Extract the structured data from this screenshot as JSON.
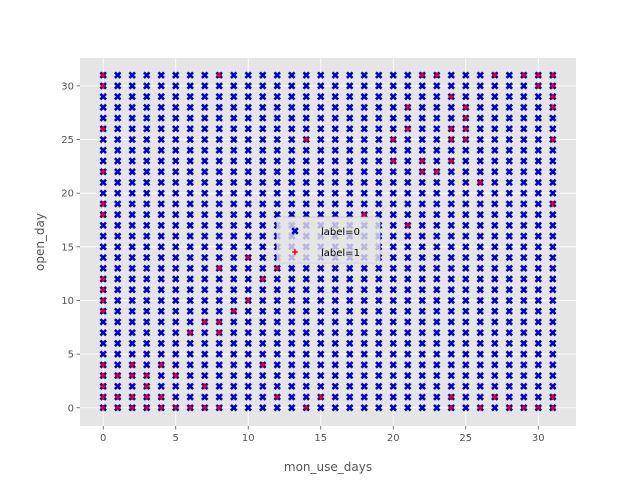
{
  "chart_data": {
    "type": "scatter",
    "xlabel": "mon_use_days",
    "ylabel": "open_day",
    "xlim": [
      -1.6,
      32.6
    ],
    "ylim": [
      -1.7,
      32.6
    ],
    "xticks": [
      0,
      5,
      10,
      15,
      20,
      25,
      30
    ],
    "yticks": [
      0,
      5,
      10,
      15,
      20,
      25,
      30
    ],
    "grid": true,
    "background": "#e5e5e5",
    "legend_position": "center",
    "x": [
      0,
      31
    ],
    "y": [
      0,
      31
    ],
    "series": [
      {
        "name": "label=0",
        "marker": "x",
        "color": "#0000cc",
        "grid_fill": {
          "x_range": [
            0,
            31
          ],
          "y_range": [
            0,
            31
          ],
          "step": 1
        }
      },
      {
        "name": "label=1",
        "marker": "+",
        "color": "#ff0000",
        "points": [
          [
            0,
            31
          ],
          [
            0,
            30
          ],
          [
            0,
            26
          ],
          [
            0,
            22
          ],
          [
            0,
            19
          ],
          [
            0,
            18
          ],
          [
            0,
            12
          ],
          [
            0,
            11
          ],
          [
            0,
            10
          ],
          [
            0,
            9
          ],
          [
            0,
            4
          ],
          [
            0,
            3
          ],
          [
            0,
            2
          ],
          [
            0,
            1
          ],
          [
            0,
            0
          ],
          [
            1,
            3
          ],
          [
            1,
            1
          ],
          [
            1,
            0
          ],
          [
            2,
            4
          ],
          [
            2,
            3
          ],
          [
            2,
            1
          ],
          [
            2,
            0
          ],
          [
            3,
            3
          ],
          [
            3,
            2
          ],
          [
            3,
            1
          ],
          [
            3,
            0
          ],
          [
            4,
            4
          ],
          [
            4,
            1
          ],
          [
            4,
            0
          ],
          [
            5,
            3
          ],
          [
            5,
            0
          ],
          [
            6,
            7
          ],
          [
            6,
            0
          ],
          [
            7,
            8
          ],
          [
            7,
            2
          ],
          [
            7,
            0
          ],
          [
            8,
            31
          ],
          [
            8,
            13
          ],
          [
            8,
            8
          ],
          [
            8,
            7
          ],
          [
            8,
            0
          ],
          [
            9,
            9
          ],
          [
            10,
            14
          ],
          [
            10,
            10
          ],
          [
            11,
            12
          ],
          [
            11,
            4
          ],
          [
            12,
            13
          ],
          [
            12,
            1
          ],
          [
            14,
            25
          ],
          [
            14,
            0
          ],
          [
            15,
            1
          ],
          [
            18,
            18
          ],
          [
            20,
            25
          ],
          [
            20,
            23
          ],
          [
            21,
            28
          ],
          [
            21,
            26
          ],
          [
            21,
            17
          ],
          [
            22,
            31
          ],
          [
            22,
            23
          ],
          [
            22,
            22
          ],
          [
            23,
            31
          ],
          [
            23,
            22
          ],
          [
            24,
            29
          ],
          [
            24,
            26
          ],
          [
            24,
            25
          ],
          [
            24,
            23
          ],
          [
            24,
            1
          ],
          [
            24,
            0
          ],
          [
            25,
            28
          ],
          [
            25,
            27
          ],
          [
            25,
            26
          ],
          [
            25,
            25
          ],
          [
            26,
            21
          ],
          [
            26,
            0
          ],
          [
            27,
            31
          ],
          [
            27,
            1
          ],
          [
            28,
            0
          ],
          [
            29,
            31
          ],
          [
            29,
            0
          ],
          [
            30,
            31
          ],
          [
            30,
            30
          ],
          [
            30,
            0
          ],
          [
            31,
            31
          ],
          [
            31,
            30
          ],
          [
            31,
            29
          ],
          [
            31,
            28
          ],
          [
            31,
            25
          ],
          [
            31,
            19
          ],
          [
            31,
            1
          ],
          [
            31,
            0
          ]
        ]
      }
    ]
  }
}
